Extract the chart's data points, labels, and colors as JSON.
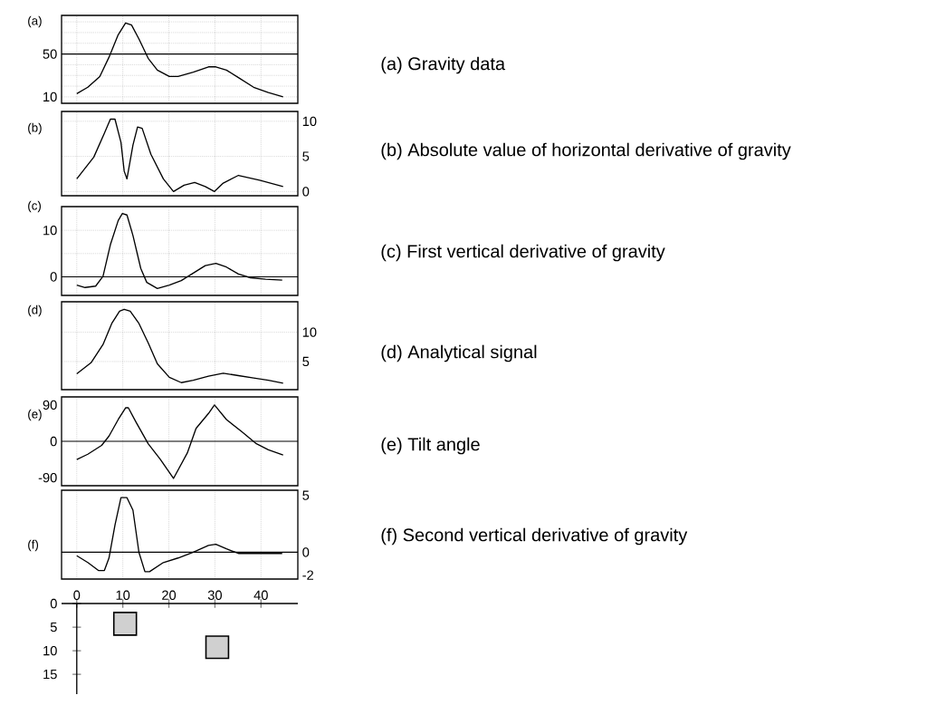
{
  "chart_data": [
    {
      "type": "line",
      "title": "(a)",
      "annotations": [
        "(a) Gravity data"
      ],
      "x": [
        0,
        2.4,
        5.0,
        7.0,
        9.0,
        10.6,
        11.9,
        13.5,
        15.5,
        17.5,
        20.1,
        22.0,
        25.3,
        28.6,
        30.2,
        32.5,
        35.1,
        38.4,
        41.6,
        44.8
      ],
      "series": [
        {
          "color": "#000000",
          "values": [
            13,
            19,
            29,
            47,
            68,
            79,
            77,
            64,
            46,
            35,
            29,
            29,
            33,
            38,
            38,
            35,
            28,
            19,
            14,
            10
          ]
        }
      ],
      "xlim": [
        -3.3,
        48
      ],
      "xticks": [
        0,
        10,
        20,
        30,
        40
      ],
      "ylim": [
        4,
        86
      ],
      "yticks": [
        10,
        {
          "value": 20,
          "label": null
        },
        {
          "value": 30,
          "label": null
        },
        {
          "value": 40,
          "label": null
        },
        50,
        {
          "value": 60,
          "label": null
        },
        {
          "value": 70,
          "label": null
        },
        {
          "value": 80,
          "label": null
        }
      ],
      "grid": true,
      "tick_labels": "y",
      "ref_lines": [
        {
          "axis": "y",
          "value": 50
        }
      ]
    },
    {
      "type": "line",
      "title": "(b)",
      "annotations": [
        "(b) Absolute value of horizontal derivative of gravity"
      ],
      "x": [
        0,
        3.7,
        6.0,
        7.3,
        8.3,
        9.6,
        10.3,
        10.9,
        12.2,
        13.2,
        14.2,
        16.1,
        18.8,
        21.0,
        23.3,
        25.6,
        27.9,
        29.9,
        31.8,
        35.1,
        39.7,
        44.8
      ],
      "series": [
        {
          "color": "#000000",
          "axis": "y2",
          "values": [
            1.8,
            4.9,
            8.3,
            10.3,
            10.3,
            7.0,
            2.9,
            1.8,
            6.6,
            9.2,
            9.0,
            5.3,
            1.8,
            0,
            0.9,
            1.3,
            0.7,
            0,
            1.2,
            2.3,
            1.6,
            0.7
          ]
        }
      ],
      "xlim": [
        -3.3,
        48
      ],
      "xticks": [
        0,
        10,
        20,
        30,
        40
      ],
      "y2lim": [
        -0.6,
        11.4
      ],
      "y2ticks": [
        0,
        5,
        10
      ],
      "grid": true,
      "tick_labels": "y"
    },
    {
      "type": "line",
      "title": "(c)",
      "annotations": [
        "(c) First vertical derivative of gravity"
      ],
      "x": [
        0,
        1.8,
        4.1,
        5.7,
        7.3,
        9.0,
        9.9,
        10.9,
        12.2,
        13.9,
        15.2,
        17.5,
        20.1,
        22.7,
        25.3,
        27.9,
        30.2,
        32.5,
        35.1,
        37.7,
        41.0,
        44.6
      ],
      "series": [
        {
          "color": "#000000",
          "values": [
            -1.8,
            -2.3,
            -2.0,
            0.1,
            6.9,
            12.1,
            13.6,
            13.3,
            8.9,
            1.8,
            -1.2,
            -2.5,
            -1.8,
            -0.8,
            0.8,
            2.4,
            2.9,
            2.1,
            0.6,
            -0.2,
            -0.5,
            -0.7
          ]
        }
      ],
      "xlim": [
        -3.3,
        48
      ],
      "xticks": [
        0,
        10,
        20,
        30,
        40
      ],
      "ylim": [
        -4,
        15.1
      ],
      "yticks": [
        0,
        {
          "value": 5,
          "label": null
        },
        10
      ],
      "grid": true,
      "tick_labels": "y",
      "ref_lines": [
        {
          "axis": "y",
          "value": 0
        }
      ]
    },
    {
      "type": "line",
      "title": "(d)",
      "annotations": [
        "(d) Analytical signal"
      ],
      "x": [
        0,
        3.1,
        5.7,
        7.6,
        9.3,
        10.3,
        11.6,
        13.5,
        15.5,
        17.5,
        20.1,
        22.7,
        25.3,
        28.6,
        31.8,
        35.1,
        38.4,
        41.6,
        44.8
      ],
      "series": [
        {
          "color": "#000000",
          "axis": "y2",
          "values": [
            2.9,
            4.8,
            7.9,
            11.5,
            13.6,
            13.9,
            13.6,
            11.5,
            8.2,
            4.6,
            2.3,
            1.4,
            1.8,
            2.5,
            3.0,
            2.6,
            2.2,
            1.8,
            1.3
          ]
        }
      ],
      "xlim": [
        -3.3,
        48
      ],
      "xticks": [
        0,
        10,
        20,
        30,
        40
      ],
      "y2lim": [
        0.2,
        15.2
      ],
      "y2ticks": [
        5,
        10
      ],
      "grid": true,
      "tick_labels": "y"
    },
    {
      "type": "line",
      "title": "(e)",
      "annotations": [
        "(e) Tilt angle"
      ],
      "x": [
        0,
        2.4,
        5.4,
        7.0,
        9.0,
        10.6,
        11.2,
        12.9,
        15.5,
        18.1,
        21.0,
        24.0,
        25.9,
        28.6,
        29.9,
        32.5,
        35.8,
        39.0,
        41.6,
        44.8
      ],
      "series": [
        {
          "color": "#000000",
          "values": [
            -45,
            -32,
            -10,
            13,
            54,
            83,
            83,
            47,
            -6,
            -44,
            -92,
            -29,
            32,
            69,
            90,
            54,
            24,
            -6,
            -21,
            -34
          ]
        }
      ],
      "xlim": [
        -3.3,
        48
      ],
      "xticks": [
        0,
        10,
        20,
        30,
        40
      ],
      "ylim": [
        -110,
        110
      ],
      "yticks": [
        -90,
        0,
        90
      ],
      "grid": "x",
      "tick_labels": "y",
      "ref_lines": [
        {
          "axis": "y",
          "value": 0
        }
      ]
    },
    {
      "type": "line",
      "title": "(f)",
      "annotations": [
        "(f) Second vertical derivative of gravity"
      ],
      "x": [
        0,
        2.4,
        4.7,
        6.0,
        7.0,
        8.3,
        9.6,
        10.9,
        12.2,
        13.5,
        14.8,
        15.8,
        18.8,
        22.0,
        25.3,
        28.6,
        30.2,
        32.5,
        35.1,
        39.0,
        44.6
      ],
      "series": [
        {
          "color": "#000000",
          "axis": "y2",
          "values": [
            -0.3,
            -0.9,
            -1.6,
            -1.6,
            -0.5,
            2.4,
            4.8,
            4.8,
            3.7,
            0,
            -1.7,
            -1.7,
            -0.9,
            -0.5,
            0,
            0.6,
            0.7,
            0.3,
            -0.1,
            -0.1,
            -0.1
          ]
        }
      ],
      "xlim": [
        -3.3,
        48
      ],
      "xticks": [
        0,
        10,
        20,
        30,
        40
      ],
      "y2lim": [
        -2.35,
        5.45
      ],
      "y2ticks": [
        -2,
        0,
        5
      ],
      "grid": "x",
      "tick_labels": "y",
      "ref_lines": [
        {
          "axis": "y2",
          "value": 0
        }
      ]
    },
    {
      "type": "bar",
      "x": [
        10.5,
        30.5
      ],
      "base": [
        1.9,
        6.9
      ],
      "values": [
        4.8,
        4.7
      ],
      "color": "#d0d0d0",
      "xlim": [
        -3.3,
        48
      ],
      "xticks": [
        0,
        10,
        20,
        30,
        40
      ],
      "ylim": [
        19.2,
        0
      ],
      "yticks": [
        0,
        5,
        10,
        15
      ]
    }
  ]
}
